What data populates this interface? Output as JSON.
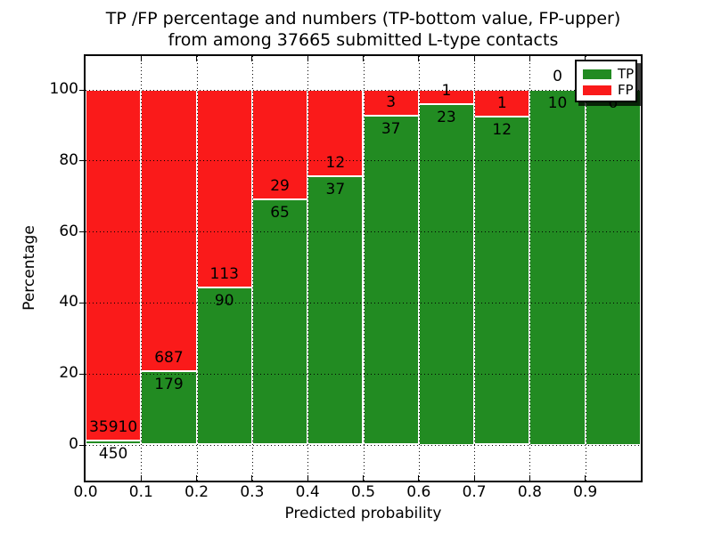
{
  "title": {
    "line1": "TP /FP percentage and numbers (TP-bottom value, FP-upper)",
    "line2": "from among 37665 submitted L-type contacts"
  },
  "axes": {
    "xlabel": "Predicted probability",
    "ylabel": "Percentage",
    "x_tick_labels": [
      "0.0",
      "0.1",
      "0.2",
      "0.3",
      "0.4",
      "0.5",
      "0.6",
      "0.7",
      "0.8",
      "0.9"
    ],
    "y_tick_labels": [
      "0",
      "20",
      "40",
      "60",
      "80",
      "100"
    ],
    "y_tick_values": [
      0,
      20,
      40,
      60,
      80,
      100
    ]
  },
  "legend": {
    "items": [
      {
        "label": "TP",
        "color": "#228b22"
      },
      {
        "label": "FP",
        "color": "#fa1a1a"
      }
    ]
  },
  "colors": {
    "tp": "#228b22",
    "fp": "#fa1a1a",
    "grid": "#000000",
    "background": "#ffffff"
  },
  "chart_data": {
    "type": "bar",
    "stacked": true,
    "normalized_to_percent": true,
    "title": "TP /FP percentage and numbers (TP-bottom value, FP-upper) from among 37665 submitted L-type contacts",
    "xlabel": "Predicted probability",
    "ylabel": "Percentage",
    "xlim": [
      0.0,
      1.0
    ],
    "ylim": [
      -10,
      110
    ],
    "grid": "dotted, drawn above bars",
    "legend_position": "upper right",
    "total_contacts": 37665,
    "bin_width": 0.1,
    "bin_starts": [
      0.0,
      0.1,
      0.2,
      0.3,
      0.4,
      0.5,
      0.6,
      0.7,
      0.8,
      0.9
    ],
    "series": [
      {
        "name": "TP",
        "color": "#228b22",
        "values": [
          450,
          179,
          90,
          65,
          37,
          37,
          23,
          12,
          10,
          6
        ]
      },
      {
        "name": "FP",
        "color": "#fa1a1a",
        "values": [
          35910,
          687,
          113,
          29,
          12,
          3,
          1,
          1,
          0,
          0
        ]
      }
    ]
  }
}
